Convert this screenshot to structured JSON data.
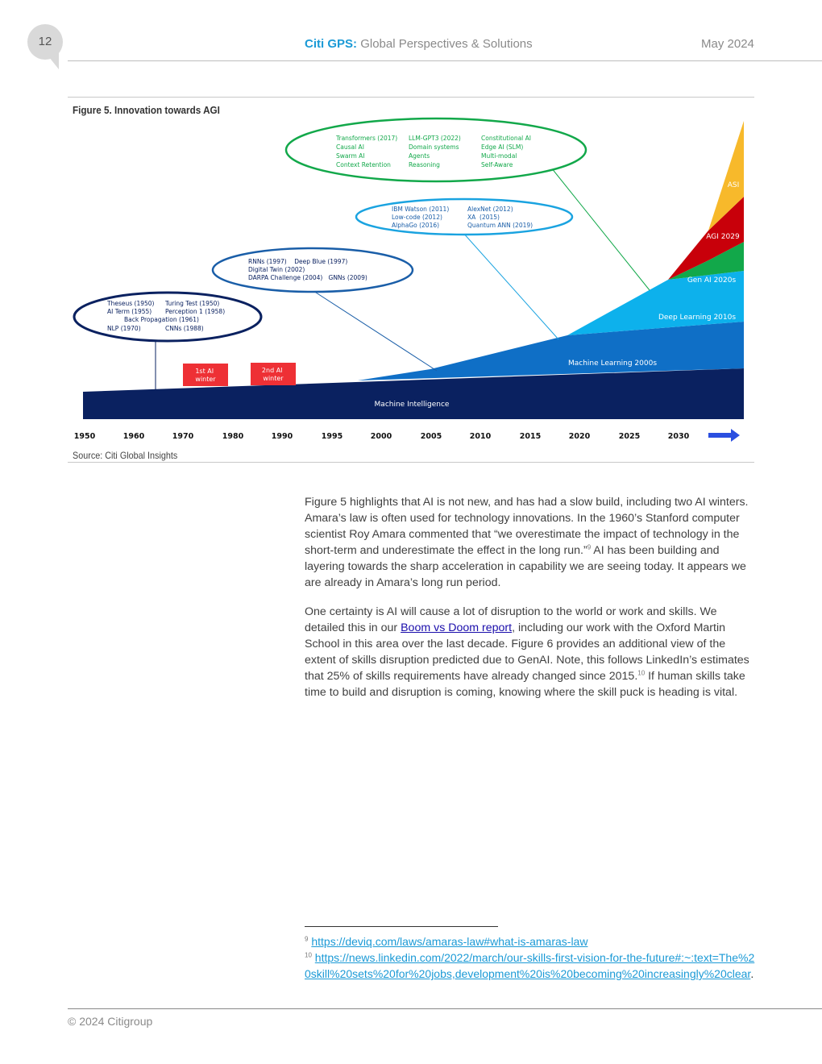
{
  "header": {
    "page_number": "12",
    "brand": "Citi GPS:",
    "subtitle": "Global Perspectives & Solutions",
    "date": "May 2024"
  },
  "figure": {
    "title": "Figure 5. Innovation towards AGI",
    "source": "Source: Citi Global Insights",
    "x_axis_labels": [
      "1950",
      "1960",
      "1970",
      "1980",
      "1990",
      "1995",
      "2000",
      "2005",
      "2010",
      "2015",
      "2020",
      "2025",
      "2030"
    ],
    "winters": [
      "1st AI winter",
      "2nd AI winter"
    ],
    "layers": [
      "Machine Intelligence",
      "Machine Learning 2000s",
      "Deep Learning 2010s",
      "Gen AI 2020s",
      "AGI 2029",
      "ASI"
    ],
    "bubble1": {
      "col1": [
        "Theseus (1950)",
        "AI Term (1955)",
        "NLP (1970)"
      ],
      "col2": [
        "Turing Test (1950)",
        "Perception 1 (1958)",
        "CNNs (1988)"
      ],
      "center": "Back Propagation (1961)"
    },
    "bubble2": {
      "lines": [
        "RNNs (1997)    Deep Blue (1997)",
        "Digital Twin (2002)",
        "DARPA Challenge (2004)   GNNs (2009)"
      ]
    },
    "bubble3": {
      "col1": [
        "IBM Watson (2011)",
        "Low-code (2012)",
        "AlphaGo (2016)"
      ],
      "col2": [
        "AlexNet (2012)",
        "XA  (2015)",
        "Quantum ANN (2019)"
      ]
    },
    "bubble4": {
      "col1": [
        "Transformers (2017)",
        "Causal AI",
        "Swarm AI",
        "Context Retention"
      ],
      "col2": [
        "LLM-GPT3 (2022)",
        "Domain systems",
        "Agents",
        "Reasoning"
      ],
      "col3": [
        "Constitutional AI",
        "Edge AI (SLM)",
        "Multi-modal",
        "Self-Aware"
      ]
    },
    "colors": {
      "machine_intelligence": "#0a2160",
      "machine_learning": "#0f6fc6",
      "deep_learning": "#0db1ec",
      "gen_ai": "#12a84a",
      "agi": "#c8000a",
      "asi": "#f7b92b",
      "winter": "#ee3035"
    }
  },
  "body": {
    "p1_a": "Figure 5 highlights that AI is not new, and has had a slow build, including two AI winters. Amara’s law is often used for technology innovations. In the 1960’s Stanford computer scientist Roy Amara commented that “we overestimate the impact of technology in the short-term and underestimate the effect in the long run.”",
    "p1_sup": "9",
    "p1_b": " AI has been building and layering towards the sharp acceleration in capability we are seeing today. It appears we are already in Amara’s long run period.",
    "p2_a": "One certainty is AI will cause a lot of disruption to the world or work and skills. We detailed this in our ",
    "p2_link": "Boom vs Doom report",
    "p2_b": ", including our work with the Oxford Martin School in this area over the last decade. Figure 6 provides an additional view of the extent of skills disruption predicted due to GenAI. Note, this follows LinkedIn’s estimates that 25% of skills requirements have already changed since 2015.",
    "p2_sup": "10",
    "p2_c": " If human skills take time to build and disruption is coming, knowing where the skill puck is heading is vital."
  },
  "footnotes": {
    "fn9_num": "9",
    "fn9_link": "https://deviq.com/laws/amaras-law#what-is-amaras-law",
    "fn10_num": "10",
    "fn10_link": "https://news.linkedin.com/2022/march/our-skills-first-vision-for-the-future#:~:text=The%20skill%20sets%20for%20jobs,development%20is%20becoming%20increasingly%20clear",
    "fn10_end": "."
  },
  "footer": {
    "copyright": "© 2024 Citigroup"
  }
}
